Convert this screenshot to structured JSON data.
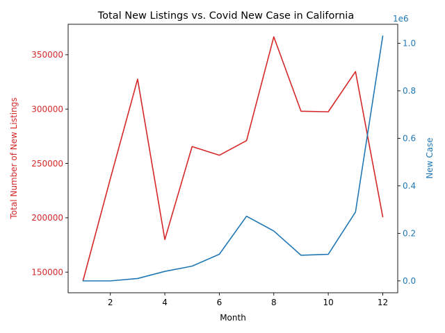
{
  "chart_data": {
    "type": "line",
    "title": "Total New Listings vs. Covid New Case in California",
    "xlabel": "Month",
    "x": [
      1,
      2,
      3,
      4,
      5,
      6,
      7,
      8,
      9,
      10,
      11,
      12
    ],
    "xlim": [
      0.45,
      12.55
    ],
    "xticks": [
      2,
      4,
      6,
      8,
      10,
      12
    ],
    "grid": false,
    "legend": "none",
    "left_axis": {
      "label": "Total Number of New Listings",
      "color": "#d62728",
      "ylim": [
        131000,
        378000
      ],
      "ticks": [
        150000,
        200000,
        250000,
        300000,
        350000
      ],
      "tick_labels": [
        "150000",
        "200000",
        "250000",
        "300000",
        "350000"
      ]
    },
    "right_axis": {
      "label": "New Case",
      "offset_label": "1e6",
      "color": "#1f77b4",
      "ylim": [
        -0.05,
        1.08
      ],
      "ticks": [
        0.0,
        0.2,
        0.4,
        0.6,
        0.8,
        1.0
      ],
      "tick_labels": [
        "0.0",
        "0.2",
        "0.4",
        "0.6",
        "0.8",
        "1.0"
      ]
    },
    "series": [
      {
        "axis": "left",
        "color": "#d62728",
        "values": [
          142500,
          236000,
          327500,
          180000,
          265500,
          257500,
          271000,
          366500,
          298000,
          297500,
          334500,
          201000
        ]
      },
      {
        "axis": "right",
        "color": "#1f77b4",
        "values": [
          0.0,
          0.0,
          0.01,
          0.04,
          0.062,
          0.112,
          0.272,
          0.21,
          0.108,
          0.112,
          0.29,
          1.03
        ]
      }
    ]
  }
}
